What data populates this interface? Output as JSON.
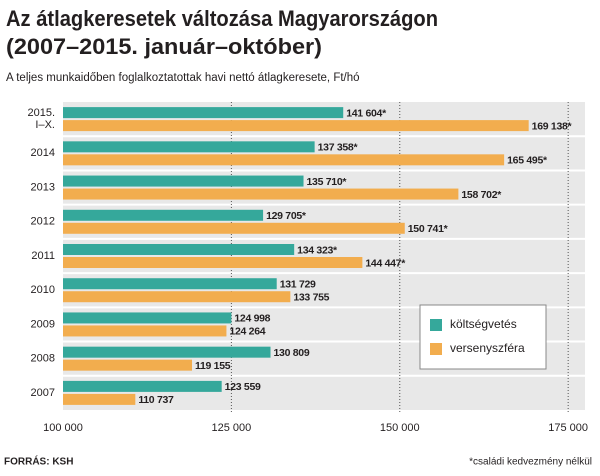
{
  "chart_data": {
    "type": "hbar",
    "title": "Az átlagkeresetek változása Magyarországon",
    "subtitle_title": "(2007–2015. január–október)",
    "subtitle": "A teljes munkaidőben foglalkoztatottak havi nettó átlagkeresete, Ft/hó",
    "categories": [
      "2015. I–X.",
      "2014",
      "2013",
      "2012",
      "2011",
      "2010",
      "2009",
      "2008",
      "2007"
    ],
    "series": [
      {
        "name": "költségvetés",
        "color": "#35a89b",
        "values": [
          141604,
          137358,
          135710,
          129705,
          134323,
          131729,
          124998,
          130809,
          123559
        ],
        "value_labels": [
          "141 604*",
          "137 358*",
          "135 710*",
          "129 705*",
          "134 323*",
          "131 729",
          "124 998",
          "130 809",
          "123 559"
        ]
      },
      {
        "name": "versenyszféra",
        "color": "#f2ad4e",
        "values": [
          169138,
          165495,
          158702,
          150741,
          144447,
          133755,
          124264,
          119155,
          110737
        ],
        "value_labels": [
          "169 138*",
          "165 495*",
          "158 702*",
          "150 741*",
          "144 447*",
          "133 755",
          "124 264",
          "119 155",
          "110 737"
        ]
      }
    ],
    "xlim": [
      100000,
      177500
    ],
    "xticks": [
      {
        "value": 100000,
        "label": "100 000"
      },
      {
        "value": 125000,
        "label": "125 000"
      },
      {
        "value": 150000,
        "label": "150 000"
      },
      {
        "value": 175000,
        "label": "175 000"
      }
    ],
    "grid": true,
    "legend": "right",
    "source": "FORRÁS: KSH",
    "footnote": "*családi kedvezmény nélkül"
  }
}
